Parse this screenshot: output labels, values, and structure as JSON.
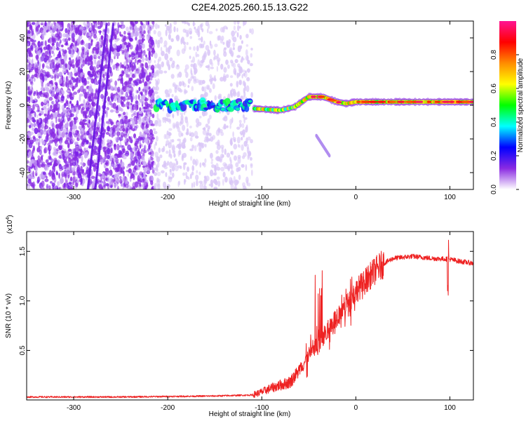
{
  "figure": {
    "title": "C2E4.2025.260.15.13.G22"
  },
  "chart_data": [
    {
      "type": "heatmap",
      "title": "C2E4.2025.260.15.13.G22",
      "xlabel": "Height of straight line (km)",
      "ylabel": "Frequency (Hz)",
      "xlim": [
        -350,
        125
      ],
      "ylim": [
        -50,
        50
      ],
      "xticks": [
        -300,
        -200,
        -100,
        0,
        100
      ],
      "yticks": [
        -40,
        -20,
        0,
        20,
        40
      ],
      "colorbar": {
        "label": "Normalized spectral amplitude",
        "range": [
          0,
          1
        ],
        "ticks": [
          0.0,
          0.2,
          0.4,
          0.6,
          0.8
        ],
        "colors": [
          "#ffffff",
          "#8a2be2",
          "#0000ff",
          "#00ffff",
          "#00ff00",
          "#ffff00",
          "#ff8c00",
          "#ff0000",
          "#ff1493"
        ]
      },
      "features": [
        {
          "name": "noisy-region",
          "x_range": [
            -350,
            -215
          ],
          "freq_range": [
            -50,
            50
          ],
          "amplitude": 0.08
        },
        {
          "name": "sparse-noise",
          "x_range": [
            -215,
            -110
          ],
          "freq_range": [
            -50,
            50
          ],
          "amplitude": 0.03
        },
        {
          "name": "diagonal-streak-1",
          "points": [
            [
              -285,
              -50
            ],
            [
              -265,
              48
            ]
          ],
          "amplitude": 0.12
        },
        {
          "name": "diagonal-streak-2",
          "points": [
            [
              -277,
              -50
            ],
            [
              -258,
              48
            ]
          ],
          "amplitude": 0.12
        },
        {
          "name": "carrier-band-1",
          "x_range": [
            -212,
            -112
          ],
          "frequency": 0,
          "amplitude": 0.35
        },
        {
          "name": "carrier-tone",
          "points": [
            [
              -108,
              -2
            ],
            [
              -80,
              -3
            ],
            [
              -65,
              -1
            ],
            [
              -50,
              5
            ],
            [
              -35,
              5
            ],
            [
              -20,
              2
            ],
            [
              -10,
              1
            ],
            [
              0,
              2
            ],
            [
              50,
              2
            ],
            [
              125,
              2
            ]
          ],
          "amplitude": 0.85
        },
        {
          "name": "faint-diagonal",
          "points": [
            [
              -42,
              -18
            ],
            [
              -28,
              -30
            ]
          ],
          "amplitude": 0.08
        }
      ]
    },
    {
      "type": "line",
      "xlabel": "Height of straight line (km)",
      "ylabel": "SNR (10 * v/v)",
      "yscale_label": "(x10",
      "yscale_exp": "4",
      "yscale_close": ")",
      "xlim": [
        -350,
        125
      ],
      "ylim": [
        0,
        1.7
      ],
      "xticks": [
        -300,
        -200,
        -100,
        0,
        100
      ],
      "yticks": [
        0.5,
        1.0,
        1.5
      ],
      "series": [
        {
          "name": "SNR",
          "color": "#ee2222",
          "x": [
            -350,
            -250,
            -150,
            -110,
            -100,
            -90,
            -80,
            -70,
            -60,
            -50,
            -45,
            -40,
            -35,
            -30,
            -20,
            -10,
            0,
            10,
            20,
            30,
            40,
            60,
            80,
            100,
            110,
            125
          ],
          "y": [
            0.03,
            0.03,
            0.04,
            0.05,
            0.08,
            0.12,
            0.15,
            0.18,
            0.3,
            0.45,
            0.5,
            0.55,
            0.62,
            0.7,
            0.85,
            0.95,
            1.1,
            1.2,
            1.3,
            1.38,
            1.43,
            1.45,
            1.43,
            1.42,
            1.4,
            1.38
          ]
        }
      ]
    }
  ]
}
